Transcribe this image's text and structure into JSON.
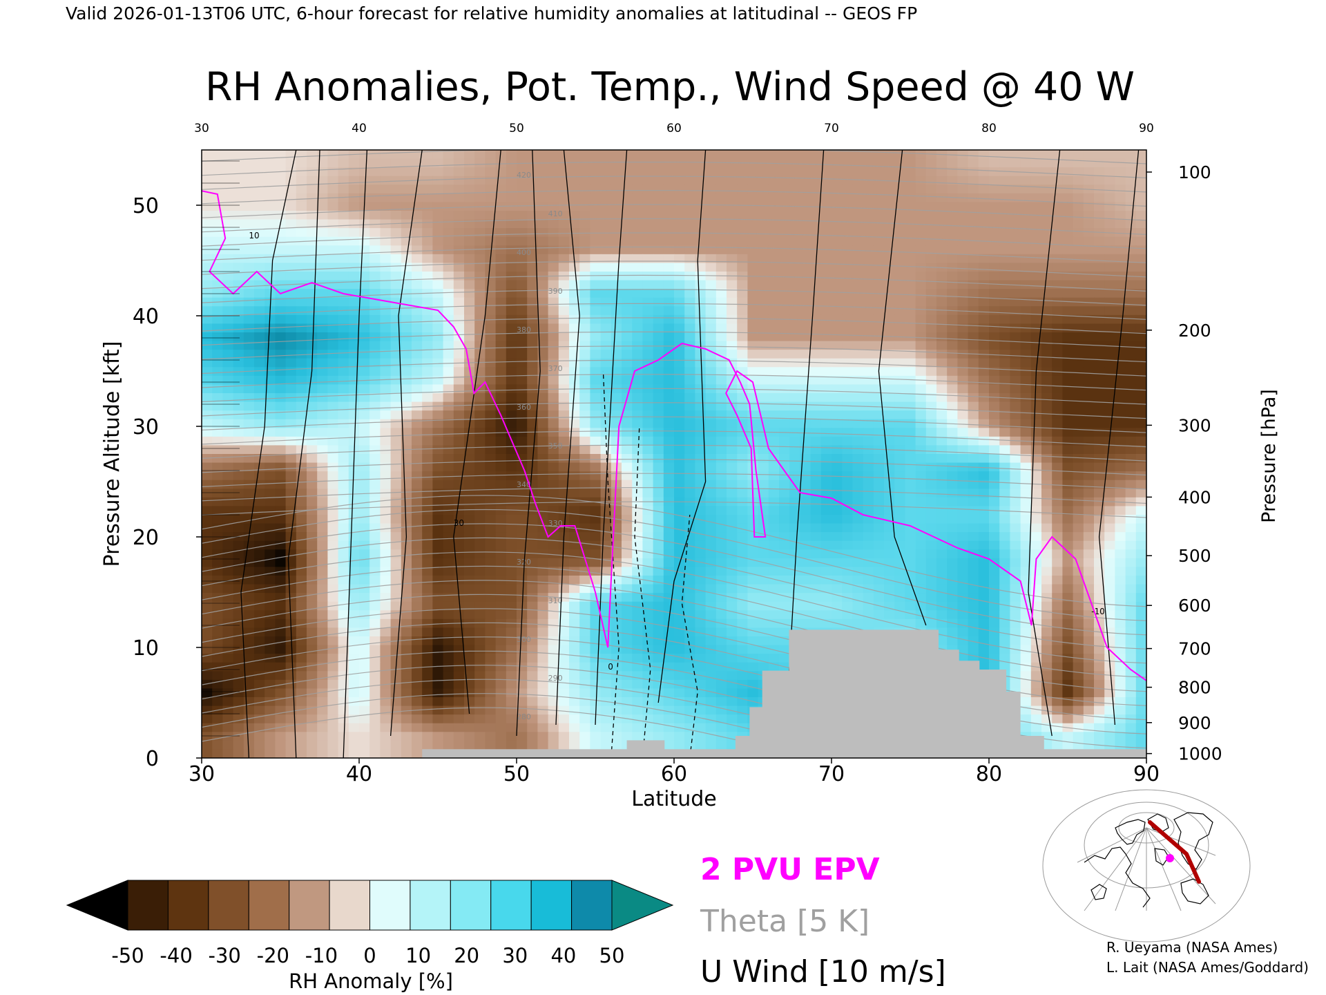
{
  "header": {
    "valid_line": "Valid 2026-01-13T06 UTC, 6-hour forecast for relative humidity anomalies at latitudinal -- GEOS FP",
    "title": "RH Anomalies, Pot. Temp., Wind Speed @ 40 W"
  },
  "colors": {
    "epv": "#ff00ff",
    "theta": "#a0a0a0",
    "wind": "#000000",
    "terrain": "#bdbdbd"
  },
  "chart_data": {
    "type": "heatmap",
    "title": "RH Anomalies, Pot. Temp., Wind Speed @ 40 W",
    "xlabel": "Latitude",
    "ylabel": "Pressure Altitude [kft]",
    "ylabel_right": "Pressure [hPa]",
    "xlim": [
      30,
      90
    ],
    "ylim": [
      0,
      55
    ],
    "x_ticks": [
      "30",
      "40",
      "50",
      "60",
      "70",
      "80",
      "90"
    ],
    "x_ticks_top": [
      "30",
      "40",
      "50",
      "60",
      "70",
      "80",
      "90"
    ],
    "y_ticks": [
      "0",
      "10",
      "20",
      "30",
      "40",
      "50"
    ],
    "pressure_ticks": [
      {
        "label": "100",
        "kft": 53.0
      },
      {
        "label": "200",
        "kft": 38.7
      },
      {
        "label": "300",
        "kft": 30.1
      },
      {
        "label": "400",
        "kft": 23.6
      },
      {
        "label": "500",
        "kft": 18.3
      },
      {
        "label": "600",
        "kft": 13.8
      },
      {
        "label": "700",
        "kft": 9.9
      },
      {
        "label": "800",
        "kft": 6.4
      },
      {
        "label": "900",
        "kft": 3.2
      },
      {
        "label": "1000",
        "kft": 0.4
      }
    ],
    "rh_anomaly_grid": {
      "lat": [
        30,
        35,
        40,
        45,
        50,
        55,
        60,
        65,
        70,
        75,
        80,
        85,
        90
      ],
      "kft": [
        2,
        6,
        10,
        14,
        18,
        22,
        26,
        30,
        34,
        38,
        42,
        46,
        50,
        54
      ],
      "values": [
        [
          -30,
          -10,
          0,
          -10,
          -20,
          10,
          20,
          30,
          20,
          20,
          30,
          10,
          30
        ],
        [
          -55,
          -30,
          10,
          -50,
          -10,
          20,
          30,
          40,
          30,
          30,
          40,
          -40,
          30
        ],
        [
          -30,
          -50,
          10,
          -50,
          -20,
          30,
          40,
          30,
          30,
          20,
          40,
          -30,
          30
        ],
        [
          -30,
          -40,
          20,
          -30,
          -30,
          30,
          40,
          20,
          20,
          30,
          40,
          -20,
          30
        ],
        [
          -40,
          -55,
          30,
          -40,
          -30,
          -30,
          40,
          30,
          30,
          30,
          40,
          -10,
          20
        ],
        [
          -40,
          -40,
          20,
          -40,
          -30,
          -40,
          40,
          30,
          40,
          30,
          30,
          -20,
          10
        ],
        [
          -20,
          -30,
          20,
          -30,
          -40,
          -20,
          40,
          20,
          40,
          30,
          40,
          -30,
          -20
        ],
        [
          10,
          20,
          10,
          -20,
          -50,
          20,
          40,
          30,
          30,
          30,
          -10,
          -40,
          -40
        ],
        [
          30,
          40,
          30,
          10,
          -40,
          30,
          40,
          10,
          10,
          10,
          -20,
          -40,
          -40
        ],
        [
          40,
          50,
          40,
          20,
          -40,
          20,
          40,
          -10,
          -10,
          -10,
          -30,
          -40,
          -40
        ],
        [
          20,
          30,
          30,
          10,
          -30,
          30,
          30,
          -10,
          -10,
          -10,
          -20,
          -20,
          -20
        ],
        [
          10,
          10,
          10,
          -10,
          -20,
          -10,
          -10,
          -10,
          -10,
          -10,
          -10,
          -10,
          -10
        ],
        [
          0,
          0,
          -10,
          -10,
          -10,
          -10,
          -10,
          -10,
          -10,
          -10,
          -10,
          -10,
          -5
        ],
        [
          0,
          0,
          -5,
          -5,
          -10,
          -10,
          -10,
          -10,
          -10,
          -10,
          -5,
          -5,
          -5
        ]
      ]
    },
    "theta_labels": [
      "420",
      "410",
      "400",
      "390",
      "380",
      "370",
      "360",
      "350",
      "340",
      "330",
      "320",
      "310",
      "300",
      "290",
      "280"
    ],
    "wind_labels": [
      "10",
      "30",
      "0",
      "-10"
    ],
    "terrain": [
      [
        44,
        0.8
      ],
      [
        57,
        0.8
      ],
      [
        57,
        1.6
      ],
      [
        59.4,
        1.6
      ],
      [
        59.4,
        0.8
      ],
      [
        63.9,
        0.8
      ],
      [
        63.9,
        2.0
      ],
      [
        64.8,
        2.0
      ],
      [
        64.8,
        4.6
      ],
      [
        65.6,
        4.6
      ],
      [
        65.6,
        7.9
      ],
      [
        67.3,
        7.9
      ],
      [
        67.3,
        11.6
      ],
      [
        71.2,
        11.6
      ],
      [
        71.2,
        11.6
      ],
      [
        76.8,
        11.6
      ],
      [
        76.8,
        9.8
      ],
      [
        78.1,
        9.8
      ],
      [
        78.1,
        8.8
      ],
      [
        79.4,
        8.8
      ],
      [
        79.4,
        8.0
      ],
      [
        81.1,
        8.0
      ],
      [
        81.1,
        6.0
      ],
      [
        82,
        6.0
      ],
      [
        82,
        2.0
      ],
      [
        83.5,
        2.0
      ],
      [
        83.5,
        0.8
      ],
      [
        90,
        0.8
      ]
    ],
    "epv_2pvu": [
      [
        30,
        51.3
      ],
      [
        31,
        51
      ],
      [
        31.5,
        47
      ],
      [
        30.5,
        44
      ],
      [
        32,
        42
      ],
      [
        33.5,
        44
      ],
      [
        35,
        42
      ],
      [
        37,
        43
      ],
      [
        39,
        42
      ],
      [
        41,
        41.5
      ],
      [
        43,
        41
      ],
      [
        45,
        40.5
      ],
      [
        46,
        39
      ],
      [
        46.8,
        37
      ],
      [
        47.3,
        33
      ],
      [
        48,
        34
      ],
      [
        49,
        31
      ],
      [
        50.5,
        26
      ],
      [
        51.2,
        23
      ],
      [
        52,
        20
      ],
      [
        52.8,
        21
      ],
      [
        53.7,
        21
      ],
      [
        55,
        15
      ],
      [
        55.8,
        10
      ],
      [
        56,
        16
      ],
      [
        56.5,
        30
      ],
      [
        57.5,
        35
      ],
      [
        59,
        36
      ],
      [
        60.5,
        37.5
      ],
      [
        62,
        37
      ],
      [
        63.5,
        36
      ],
      [
        64.2,
        34
      ],
      [
        64.8,
        32
      ],
      [
        65.2,
        26
      ],
      [
        65.8,
        20
      ],
      [
        65.1,
        20
      ],
      [
        64.9,
        28
      ],
      [
        64,
        31
      ],
      [
        63.3,
        33
      ],
      [
        64,
        35
      ],
      [
        65,
        34
      ],
      [
        66,
        28
      ],
      [
        67,
        26
      ],
      [
        68,
        24
      ],
      [
        70,
        23.5
      ],
      [
        72,
        22
      ],
      [
        75,
        21
      ],
      [
        78,
        19
      ],
      [
        80,
        18
      ],
      [
        82,
        16
      ],
      [
        82.7,
        12
      ],
      [
        83,
        18
      ],
      [
        84,
        20
      ],
      [
        85.5,
        18
      ],
      [
        86.5,
        14
      ],
      [
        87.5,
        10
      ],
      [
        89,
        8
      ],
      [
        90,
        7
      ]
    ],
    "legend": {
      "epv": "2 PVU EPV",
      "theta": "Theta [5 K]",
      "wind": "U Wind [10 m/s]"
    },
    "colorbar": {
      "label": "RH Anomaly [%]",
      "ticks": [
        "-50",
        "-40",
        "-30",
        "-20",
        "-10",
        "0",
        "10",
        "20",
        "30",
        "40",
        "50"
      ],
      "colors": [
        "#000000",
        "#3a1e06",
        "#5e3410",
        "#80502a",
        "#a06e4a",
        "#c09880",
        "#e8d8cc",
        "#e0fcfc",
        "#b4f4f8",
        "#84eaf4",
        "#48d8ec",
        "#18bcd8",
        "#0e8aaa",
        "#0a8a84"
      ]
    }
  },
  "credits": {
    "line1": "R. Ueyama (NASA Ames)",
    "line2": "L. Lait (NASA Ames/Goddard)"
  }
}
